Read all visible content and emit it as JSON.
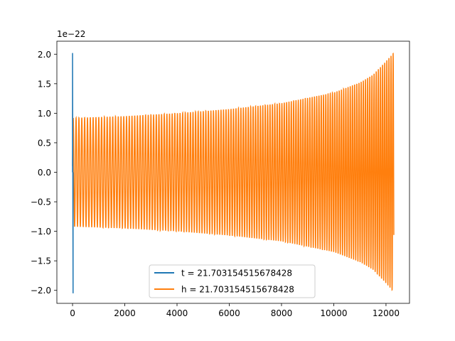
{
  "chart_data": {
    "type": "line",
    "title": "",
    "xlabel": "",
    "ylabel": "",
    "xlim": [
      -600,
      12900
    ],
    "ylim": [
      -2.22,
      2.22
    ],
    "y_offset_label": "1e−22",
    "x_ticks": [
      0,
      2000,
      4000,
      6000,
      8000,
      10000,
      12000
    ],
    "x_tick_labels": [
      "0",
      "2000",
      "4000",
      "6000",
      "8000",
      "10000",
      "12000"
    ],
    "y_ticks": [
      -2.0,
      -1.5,
      -1.0,
      -0.5,
      0.0,
      0.5,
      1.0,
      1.5,
      2.0
    ],
    "y_tick_labels": [
      "−2.0",
      "−1.5",
      "−1.0",
      "−0.5",
      "0.0",
      "0.5",
      "1.0",
      "1.5",
      "2.0"
    ],
    "grid": false,
    "legend_position": "lower center",
    "series": [
      {
        "name": "t = 21.703154515678428",
        "color": "#1f77b4",
        "description_shape": "vertical spike near x=0",
        "x_range": [
          0,
          12300
        ],
        "peak_values": [
          [
            0,
            2.02
          ],
          [
            20,
            -2.05
          ]
        ]
      },
      {
        "name": "h = 21.703154515678428",
        "color": "#ff7f0e",
        "x_range": [
          0,
          12300
        ],
        "envelope": [
          [
            0,
            0.92
          ],
          [
            2000,
            0.95
          ],
          [
            4000,
            1.0
          ],
          [
            6000,
            1.07
          ],
          [
            8000,
            1.17
          ],
          [
            10000,
            1.35
          ],
          [
            11000,
            1.52
          ],
          [
            11500,
            1.65
          ],
          [
            12000,
            1.88
          ],
          [
            12300,
            2.03
          ]
        ]
      }
    ]
  }
}
